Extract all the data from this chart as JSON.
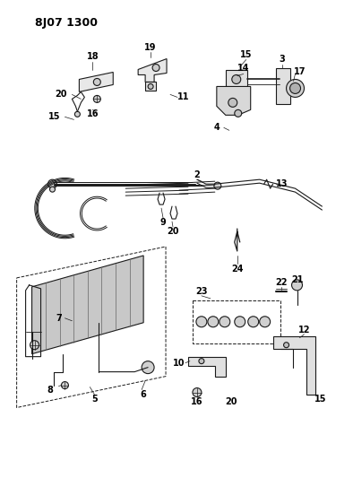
{
  "title": "8J07 1300",
  "bg_color": "#ffffff",
  "line_color": "#1a1a1a",
  "figsize": [
    3.94,
    5.33
  ],
  "dpi": 100
}
